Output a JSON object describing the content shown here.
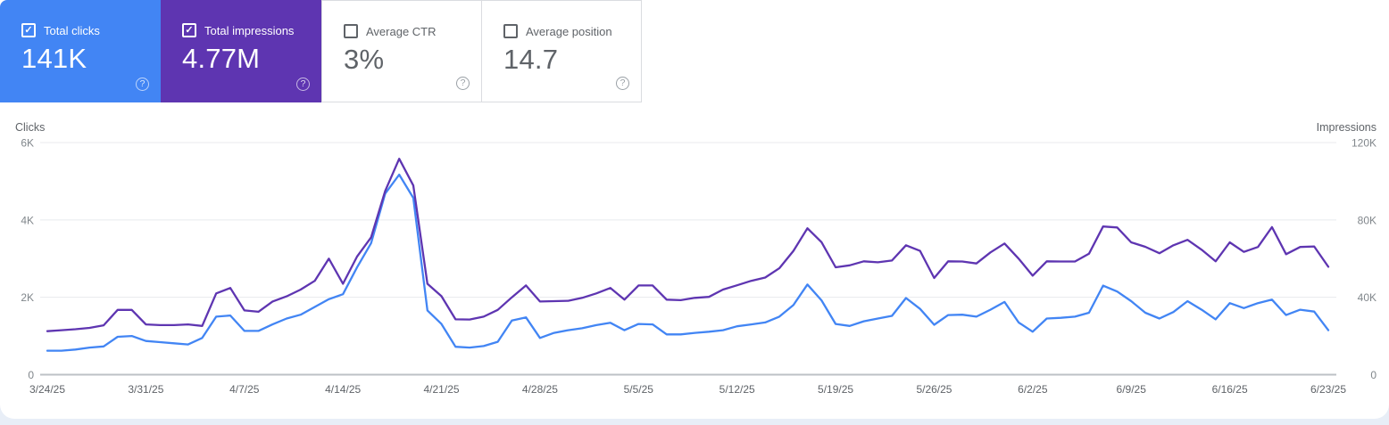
{
  "page": {
    "background": "#e8eef7",
    "panel_background": "#ffffff"
  },
  "icons": {
    "help_glyph": "?",
    "check_glyph": "✓"
  },
  "cards": [
    {
      "label": "Total clicks",
      "value": "141K",
      "checked": true,
      "color": "#4285f4",
      "text_color": "#ffffff"
    },
    {
      "label": "Total impressions",
      "value": "4.77M",
      "checked": true,
      "color": "#5e35b1",
      "text_color": "#ffffff"
    },
    {
      "label": "Average CTR",
      "value": "3%",
      "checked": false,
      "color": "#ffffff",
      "text_color": "#5f6368"
    },
    {
      "label": "Average position",
      "value": "14.7",
      "checked": false,
      "color": "#ffffff",
      "text_color": "#5f6368"
    }
  ],
  "chart_data": {
    "type": "line",
    "grid": "horizontal",
    "colors": {
      "gridline": "#e8eaed",
      "baseline": "#bdc1c6",
      "tick_label": "#80868b",
      "date_label": "#5f6368"
    },
    "left_axis": {
      "title": "Clicks",
      "ticks": [
        "6K",
        "4K",
        "2K",
        "0"
      ],
      "max": 6000
    },
    "right_axis": {
      "title": "Impressions",
      "ticks": [
        "120K",
        "80K",
        "40K",
        "0"
      ],
      "max": 120000
    },
    "x_tick_labels": [
      "3/24/25",
      "3/31/25",
      "4/7/25",
      "4/14/25",
      "4/21/25",
      "4/28/25",
      "5/5/25",
      "5/12/25",
      "5/19/25",
      "5/26/25",
      "6/2/25",
      "6/9/25",
      "6/16/25",
      "6/23/25"
    ],
    "x_tick_day_indices": [
      0,
      7,
      14,
      21,
      28,
      35,
      42,
      49,
      56,
      63,
      70,
      77,
      84,
      91
    ],
    "series": [
      {
        "id": "clicks",
        "name": "Total clicks",
        "color": "#4285f4",
        "axis": "left",
        "values": [
          620,
          620,
          650,
          700,
          730,
          980,
          1000,
          870,
          840,
          810,
          780,
          950,
          1500,
          1530,
          1130,
          1130,
          1300,
          1450,
          1550,
          1750,
          1950,
          2080,
          2770,
          3400,
          4680,
          5170,
          4570,
          1660,
          1310,
          720,
          700,
          740,
          850,
          1400,
          1480,
          950,
          1080,
          1150,
          1200,
          1280,
          1340,
          1150,
          1310,
          1300,
          1040,
          1040,
          1080,
          1110,
          1150,
          1250,
          1300,
          1350,
          1500,
          1800,
          2330,
          1920,
          1310,
          1260,
          1380,
          1450,
          1520,
          1980,
          1700,
          1290,
          1540,
          1550,
          1500,
          1680,
          1880,
          1350,
          1110,
          1450,
          1470,
          1500,
          1600,
          2300,
          2150,
          1900,
          1600,
          1450,
          1620,
          1900,
          1680,
          1430,
          1850,
          1720,
          1850,
          1940,
          1540,
          1680,
          1630,
          1150
        ]
      },
      {
        "id": "impressions",
        "name": "Total impressions",
        "color": "#5e35b1",
        "axis": "right",
        "values": [
          22500,
          23000,
          23500,
          24200,
          25500,
          33500,
          33500,
          26000,
          25600,
          25600,
          26000,
          25200,
          42000,
          44800,
          33200,
          32500,
          37800,
          40500,
          44000,
          48500,
          60000,
          47000,
          61000,
          71000,
          95000,
          111600,
          97800,
          47000,
          40600,
          28600,
          28500,
          30000,
          33500,
          40000,
          46100,
          37800,
          38000,
          38200,
          39700,
          42000,
          44800,
          38800,
          46100,
          46100,
          38800,
          38500,
          39700,
          40200,
          44000,
          46200,
          48500,
          50200,
          55000,
          64000,
          75700,
          68500,
          55500,
          56500,
          58600,
          58100,
          59000,
          66900,
          64000,
          50000,
          58600,
          58500,
          57500,
          63200,
          67800,
          60000,
          51200,
          58600,
          58500,
          58500,
          62500,
          76600,
          76100,
          68400,
          66100,
          62800,
          66900,
          69700,
          64600,
          58600,
          68400,
          63500,
          66000,
          76300,
          62300,
          66000,
          66300,
          55800
        ]
      }
    ]
  }
}
